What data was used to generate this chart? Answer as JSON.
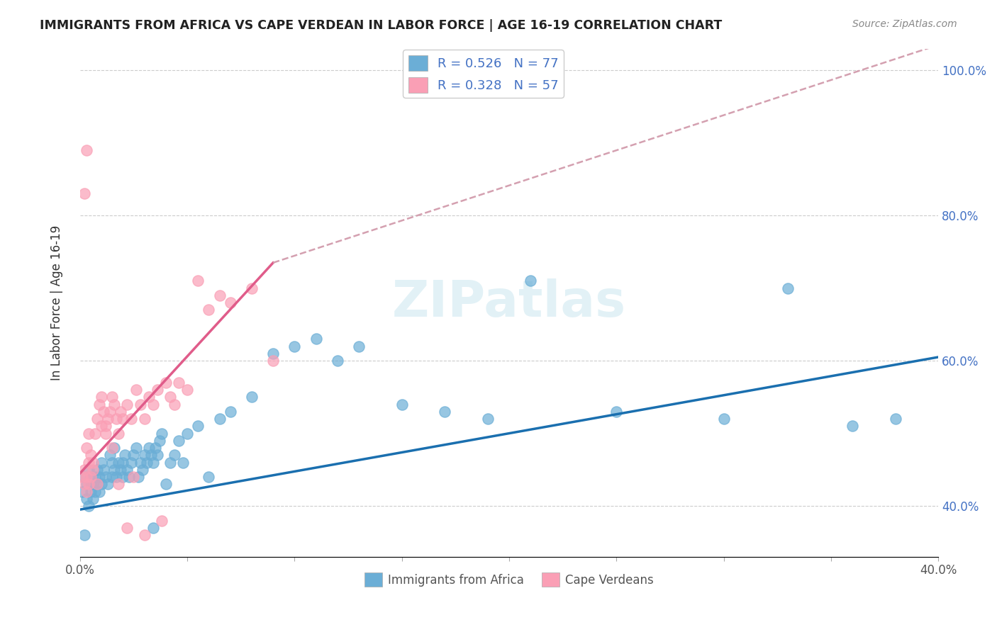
{
  "title": "IMMIGRANTS FROM AFRICA VS CAPE VERDEAN IN LABOR FORCE | AGE 16-19 CORRELATION CHART",
  "source": "Source: ZipAtlas.com",
  "xlabel": "",
  "ylabel": "In Labor Force | Age 16-19",
  "xlim": [
    0.0,
    0.4
  ],
  "ylim": [
    0.33,
    1.03
  ],
  "xticks": [
    0.0,
    0.05,
    0.1,
    0.15,
    0.2,
    0.25,
    0.3,
    0.35,
    0.4
  ],
  "xticklabels": [
    "0.0%",
    "",
    "",
    "",
    "",
    "",
    "",
    "",
    "40.0%"
  ],
  "ytick_positions": [
    0.4,
    0.6,
    0.8,
    1.0
  ],
  "yticklabels": [
    "40.0%",
    "60.0%",
    "80.0%",
    "100.0%"
  ],
  "legend_r1": "R = 0.526",
  "legend_n1": "N = 77",
  "legend_r2": "R = 0.328",
  "legend_n2": "N = 57",
  "blue_color": "#6baed6",
  "pink_color": "#fa9fb5",
  "trend_blue": "#1a6faf",
  "trend_pink": "#e05c8a",
  "trend_dashed": "#d4a0b0",
  "watermark": "ZIPatlas",
  "blue_x": [
    0.001,
    0.002,
    0.003,
    0.003,
    0.004,
    0.004,
    0.005,
    0.005,
    0.005,
    0.006,
    0.006,
    0.007,
    0.007,
    0.008,
    0.008,
    0.009,
    0.009,
    0.01,
    0.01,
    0.011,
    0.012,
    0.013,
    0.014,
    0.015,
    0.015,
    0.016,
    0.016,
    0.017,
    0.018,
    0.019,
    0.02,
    0.02,
    0.021,
    0.022,
    0.023,
    0.024,
    0.025,
    0.026,
    0.027,
    0.028,
    0.029,
    0.03,
    0.031,
    0.032,
    0.033,
    0.034,
    0.035,
    0.036,
    0.037,
    0.038,
    0.04,
    0.042,
    0.044,
    0.046,
    0.048,
    0.05,
    0.055,
    0.06,
    0.065,
    0.07,
    0.08,
    0.09,
    0.1,
    0.11,
    0.12,
    0.13,
    0.15,
    0.17,
    0.19,
    0.21,
    0.25,
    0.3,
    0.33,
    0.36,
    0.38,
    0.034,
    0.002
  ],
  "blue_y": [
    0.42,
    0.44,
    0.41,
    0.43,
    0.4,
    0.45,
    0.42,
    0.43,
    0.44,
    0.41,
    0.43,
    0.44,
    0.42,
    0.45,
    0.43,
    0.44,
    0.42,
    0.46,
    0.43,
    0.45,
    0.44,
    0.43,
    0.47,
    0.46,
    0.44,
    0.48,
    0.45,
    0.44,
    0.46,
    0.45,
    0.44,
    0.46,
    0.47,
    0.45,
    0.44,
    0.46,
    0.47,
    0.48,
    0.44,
    0.46,
    0.45,
    0.47,
    0.46,
    0.48,
    0.47,
    0.46,
    0.48,
    0.47,
    0.49,
    0.5,
    0.43,
    0.46,
    0.47,
    0.49,
    0.46,
    0.5,
    0.51,
    0.44,
    0.52,
    0.53,
    0.55,
    0.61,
    0.62,
    0.63,
    0.6,
    0.62,
    0.54,
    0.53,
    0.52,
    0.71,
    0.53,
    0.52,
    0.7,
    0.51,
    0.52,
    0.37,
    0.36
  ],
  "pink_x": [
    0.001,
    0.002,
    0.002,
    0.003,
    0.003,
    0.004,
    0.004,
    0.005,
    0.005,
    0.006,
    0.006,
    0.007,
    0.008,
    0.009,
    0.01,
    0.011,
    0.012,
    0.013,
    0.014,
    0.015,
    0.016,
    0.017,
    0.018,
    0.019,
    0.02,
    0.022,
    0.024,
    0.026,
    0.028,
    0.03,
    0.032,
    0.034,
    0.036,
    0.038,
    0.04,
    0.042,
    0.044,
    0.046,
    0.05,
    0.055,
    0.06,
    0.065,
    0.07,
    0.08,
    0.09,
    0.003,
    0.004,
    0.008,
    0.01,
    0.012,
    0.015,
    0.018,
    0.022,
    0.025,
    0.03,
    0.002,
    0.003
  ],
  "pink_y": [
    0.44,
    0.43,
    0.45,
    0.42,
    0.44,
    0.43,
    0.46,
    0.44,
    0.47,
    0.45,
    0.46,
    0.5,
    0.52,
    0.54,
    0.51,
    0.53,
    0.5,
    0.52,
    0.53,
    0.55,
    0.54,
    0.52,
    0.5,
    0.53,
    0.52,
    0.54,
    0.52,
    0.56,
    0.54,
    0.52,
    0.55,
    0.54,
    0.56,
    0.38,
    0.57,
    0.55,
    0.54,
    0.57,
    0.56,
    0.71,
    0.67,
    0.69,
    0.68,
    0.7,
    0.6,
    0.48,
    0.5,
    0.43,
    0.55,
    0.51,
    0.48,
    0.43,
    0.37,
    0.44,
    0.36,
    0.83,
    0.89
  ],
  "blue_trend_x0": 0.0,
  "blue_trend_x1": 0.4,
  "blue_trend_y0": 0.395,
  "blue_trend_y1": 0.605,
  "pink_trend_x0": 0.0,
  "pink_trend_x1": 0.09,
  "pink_trend_y0": 0.445,
  "pink_trend_y1": 0.735,
  "dashed_trend_x0": 0.09,
  "dashed_trend_x1": 0.4,
  "dashed_trend_y0": 0.735,
  "dashed_trend_y1": 1.035
}
